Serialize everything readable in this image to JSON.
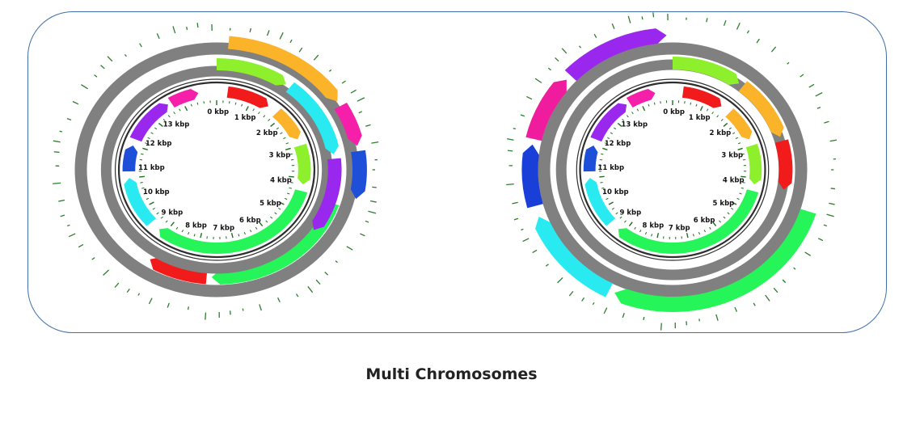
{
  "caption": "Multi Chromosomes",
  "colors": {
    "backbone": "#808080",
    "tick_ring": "#2e2e2e",
    "tick_mark": "#1f6b1f",
    "outer_tick": "#2e7d2e",
    "frame": "#3f6fa8",
    "red": "#f21b1b",
    "orange": "#fbb32a",
    "lime": "#8ef02c",
    "cyan": "#28eaf0",
    "magenta": "#f51faa",
    "blue": "#1e4fd8",
    "green": "#26f55a",
    "purple": "#9a27ee",
    "pink": "#f01c9e",
    "navy_blue": "#1a3fd9"
  },
  "maps": [
    {
      "name": "",
      "tick_labels": [
        "0 kbp",
        "1 kbp",
        "2 kbp",
        "3 kbp",
        "4 kbp",
        "5 kbp",
        "6 kbp",
        "7 kbp",
        "8 kbp",
        "9 kbp",
        "10 kbp",
        "11 kbp",
        "12 kbp",
        "13 kbp"
      ],
      "inner_features": [
        {
          "start": 0.3,
          "end": 1.5,
          "color": "red",
          "icon": "arrow-feature"
        },
        {
          "start": 1.8,
          "end": 2.8,
          "color": "orange",
          "icon": "arrow-feature"
        },
        {
          "start": 3.0,
          "end": 4.2,
          "color": "lime",
          "icon": "arrow-feature"
        },
        {
          "start": 4.4,
          "end": 9.2,
          "color": "green",
          "icon": "arrow-feature"
        },
        {
          "start": 9.5,
          "end": 11.0,
          "color": "cyan",
          "icon": "arrow-feature"
        },
        {
          "start": 11.2,
          "end": 12.0,
          "color": "blue",
          "icon": "arrow-feature"
        },
        {
          "start": 12.2,
          "end": 13.6,
          "color": "purple",
          "icon": "arrow-feature"
        },
        {
          "start": 13.7,
          "end": 14.5,
          "color": "magenta",
          "icon": "arrow-feature"
        }
      ],
      "middle_features": [
        {
          "start": 0.0,
          "end": 1.5,
          "color": "lime",
          "icon": "arrow-feature"
        },
        {
          "start": 1.6,
          "end": 3.4,
          "color": "cyan",
          "icon": "arrow-feature"
        },
        {
          "start": 3.5,
          "end": 5.2,
          "color": "purple",
          "icon": "arrow-feature"
        }
      ],
      "outer_features": [
        {
          "start": 0.2,
          "end": 2.4,
          "color": "orange",
          "icon": "arrow-feature"
        },
        {
          "start": 2.5,
          "end": 3.3,
          "color": "magenta",
          "icon": "arrow-feature"
        },
        {
          "start": 3.4,
          "end": 4.3,
          "color": "blue",
          "icon": "arrow-feature"
        }
      ],
      "cross_features": [
        {
          "start": 4.5,
          "end": 7.6,
          "color": "green",
          "icon": "arrow-feature"
        },
        {
          "start": 7.7,
          "end": 8.9,
          "color": "red",
          "icon": "arrow-feature"
        }
      ]
    },
    {
      "name": "",
      "tick_labels": [
        "0 kbp",
        "1 kbp",
        "2 kbp",
        "3 kbp",
        "4 kbp",
        "5 kbp",
        "6 kbp",
        "7 kbp",
        "8 kbp",
        "9 kbp",
        "10 kbp",
        "11 kbp",
        "12 kbp",
        "13 kbp"
      ],
      "inner_features": [
        {
          "start": 0.3,
          "end": 1.5,
          "color": "red",
          "icon": "arrow-feature"
        },
        {
          "start": 1.8,
          "end": 2.8,
          "color": "orange",
          "icon": "arrow-feature"
        },
        {
          "start": 3.0,
          "end": 4.2,
          "color": "lime",
          "icon": "arrow-feature"
        },
        {
          "start": 4.4,
          "end": 9.2,
          "color": "green",
          "icon": "arrow-feature"
        },
        {
          "start": 9.5,
          "end": 11.0,
          "color": "cyan",
          "icon": "arrow-feature"
        },
        {
          "start": 11.2,
          "end": 12.0,
          "color": "blue",
          "icon": "arrow-feature"
        },
        {
          "start": 12.2,
          "end": 13.6,
          "color": "purple",
          "icon": "arrow-feature"
        },
        {
          "start": 13.7,
          "end": 14.5,
          "color": "magenta",
          "icon": "arrow-feature"
        }
      ],
      "middle_features": [
        {
          "start": 0.0,
          "end": 1.5,
          "color": "lime",
          "icon": "arrow-feature"
        },
        {
          "start": 1.6,
          "end": 3.0,
          "color": "orange",
          "icon": "arrow-feature"
        },
        {
          "start": 3.1,
          "end": 4.2,
          "color": "red",
          "icon": "arrow-feature"
        }
      ],
      "outer_features": [
        {
          "start": 4.5,
          "end": 8.5,
          "color": "green",
          "icon": "arrow-feature"
        },
        {
          "start": 8.6,
          "end": 10.4,
          "color": "cyan",
          "icon": "arrow-feature"
        },
        {
          "start": 10.6,
          "end": 11.7,
          "color": "navy_blue",
          "icon": "arrow-feature"
        },
        {
          "start": 11.8,
          "end": 13.0,
          "color": "pink",
          "icon": "arrow-feature"
        },
        {
          "start": 13.1,
          "end": 14.9,
          "color": "purple",
          "icon": "arrow-feature"
        }
      ]
    }
  ]
}
